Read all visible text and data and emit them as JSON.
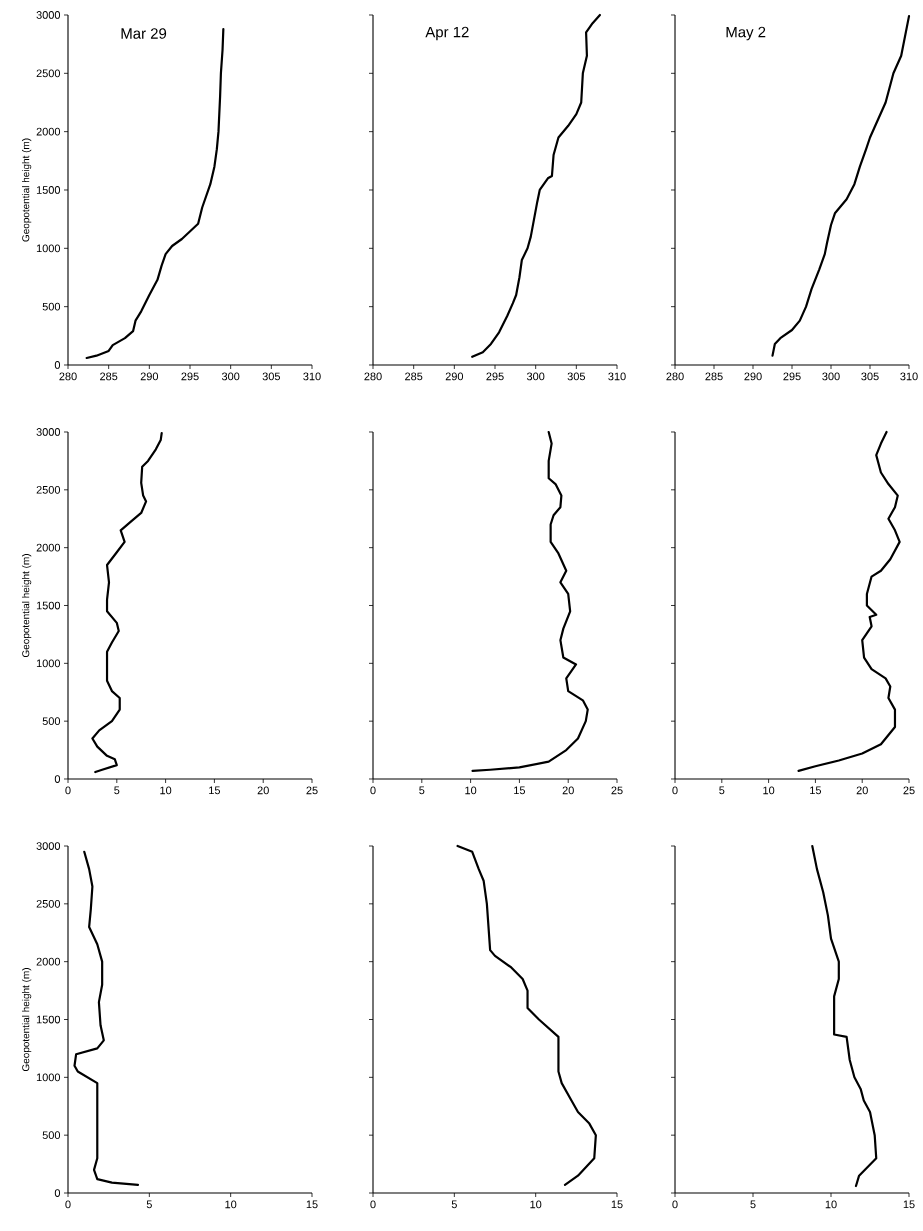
{
  "chart_data": [
    {
      "type": "line",
      "title": "Mar 29",
      "ylabel": "Geopotential height (m)",
      "xlim": [
        280,
        310
      ],
      "xticks": [
        280,
        285,
        290,
        295,
        300,
        305,
        310
      ],
      "ylim": [
        0,
        3000
      ],
      "yticks": [
        0,
        500,
        1000,
        1500,
        2000,
        2500,
        3000
      ],
      "series": [
        {
          "color": "#000000",
          "x": [
            282.3,
            283.5,
            285,
            285.5,
            287,
            288,
            288.3,
            289,
            290,
            291,
            291.5,
            292,
            292.8,
            294,
            296,
            296.5,
            297.5,
            298,
            298.3,
            298.5,
            298.7,
            298.8,
            299,
            299.1
          ],
          "values": [
            60,
            80,
            120,
            170,
            230,
            290,
            380,
            460,
            600,
            730,
            850,
            950,
            1020,
            1080,
            1210,
            1350,
            1550,
            1700,
            1850,
            2000,
            2300,
            2500,
            2700,
            2880
          ]
        }
      ]
    },
    {
      "type": "line",
      "title": "Apr 12",
      "xlim": [
        280,
        310
      ],
      "xticks": [
        280,
        285,
        290,
        295,
        300,
        305,
        310
      ],
      "ylim": [
        0,
        3000
      ],
      "yticks": [
        0,
        500,
        1000,
        1500,
        2000,
        2500,
        3000
      ],
      "tick_labels": "x",
      "series": [
        {
          "color": "#000000",
          "x": [
            292.2,
            293.5,
            294.5,
            295.5,
            296.5,
            297.2,
            297.6,
            298,
            298.3,
            299,
            299.4,
            299.8,
            300.2,
            300.5,
            301.5,
            302,
            302.2,
            302.8,
            304,
            305,
            305.6,
            305.8,
            306.3,
            306.2,
            307,
            307.9
          ],
          "values": [
            70,
            110,
            180,
            280,
            420,
            530,
            600,
            750,
            900,
            1000,
            1100,
            1250,
            1400,
            1500,
            1600,
            1620,
            1800,
            1950,
            2050,
            2150,
            2250,
            2500,
            2650,
            2850,
            2930,
            3000
          ]
        }
      ]
    },
    {
      "type": "line",
      "title": "May 2",
      "xlim": [
        280,
        310
      ],
      "xticks": [
        280,
        285,
        290,
        295,
        300,
        305,
        310
      ],
      "ylim": [
        0,
        3000
      ],
      "yticks": [
        0,
        500,
        1000,
        1500,
        2000,
        2500,
        3000
      ],
      "tick_labels": "x",
      "series": [
        {
          "color": "#000000",
          "x": [
            292.5,
            292.8,
            293.5,
            295,
            296,
            296.8,
            297.5,
            298.5,
            299.2,
            299.5,
            300,
            300.5,
            302,
            303,
            303.7,
            304.5,
            305,
            306,
            307,
            307.6,
            308,
            309,
            310
          ],
          "values": [
            80,
            180,
            230,
            300,
            380,
            500,
            650,
            820,
            950,
            1050,
            1200,
            1300,
            1420,
            1550,
            1700,
            1850,
            1950,
            2100,
            2250,
            2400,
            2500,
            2650,
            2990
          ]
        }
      ]
    },
    {
      "type": "line",
      "ylabel": "Geopotential height (m)",
      "xlim": [
        0,
        25
      ],
      "xticks": [
        0,
        5,
        10,
        15,
        20,
        25
      ],
      "ylim": [
        0,
        3000
      ],
      "yticks": [
        0,
        500,
        1000,
        1500,
        2000,
        2500,
        3000
      ],
      "series": [
        {
          "color": "#000000",
          "x": [
            2.8,
            3.5,
            5,
            4.8,
            4,
            3,
            2.5,
            3.2,
            4.5,
            5.3,
            5.3,
            4.5,
            4,
            4,
            4.5,
            5.2,
            5,
            4,
            4,
            4.2,
            4,
            5,
            5.8,
            5.4,
            6.5,
            7.5,
            8,
            7.7,
            7.5,
            7.6,
            8.2,
            9,
            9.5,
            9.6
          ],
          "values": [
            60,
            80,
            120,
            170,
            200,
            280,
            350,
            420,
            500,
            600,
            700,
            760,
            850,
            1100,
            1180,
            1280,
            1350,
            1450,
            1550,
            1700,
            1850,
            1960,
            2050,
            2150,
            2230,
            2300,
            2400,
            2450,
            2560,
            2700,
            2750,
            2850,
            2930,
            2990
          ]
        }
      ]
    },
    {
      "type": "line",
      "xlim": [
        0,
        25
      ],
      "xticks": [
        0,
        5,
        10,
        15,
        20,
        25
      ],
      "ylim": [
        0,
        3000
      ],
      "yticks": [
        0,
        500,
        1000,
        1500,
        2000,
        2500,
        3000
      ],
      "tick_labels": "x",
      "series": [
        {
          "color": "#000000",
          "x": [
            10.2,
            12,
            15,
            18,
            19.8,
            21,
            21.8,
            22,
            21.5,
            20,
            19.8,
            20.8,
            19.5,
            19.2,
            19.5,
            20.2,
            20,
            19.2,
            19.8,
            19,
            18.2,
            18.2,
            18.5,
            19.2,
            19.3,
            18.7,
            18,
            18,
            18.3,
            18
          ],
          "values": [
            70,
            80,
            100,
            150,
            250,
            350,
            500,
            600,
            680,
            760,
            870,
            990,
            1050,
            1200,
            1300,
            1450,
            1600,
            1700,
            1800,
            1950,
            2050,
            2200,
            2280,
            2350,
            2450,
            2550,
            2600,
            2750,
            2900,
            3000
          ]
        }
      ]
    },
    {
      "type": "line",
      "xlim": [
        0,
        25
      ],
      "xticks": [
        0,
        5,
        10,
        15,
        20,
        25
      ],
      "ylim": [
        0,
        3000
      ],
      "yticks": [
        0,
        500,
        1000,
        1500,
        2000,
        2500,
        3000
      ],
      "tick_labels": "x",
      "series": [
        {
          "color": "#000000",
          "x": [
            13.2,
            15,
            17.5,
            20,
            22,
            23.5,
            23.5,
            22.8,
            23,
            22.5,
            21,
            20.2,
            20,
            21,
            20.8,
            21.5,
            20.5,
            20.5,
            21,
            22,
            23,
            24,
            23.5,
            22.8,
            23.5,
            23.8,
            22.8,
            22,
            21.5,
            22,
            22.6
          ],
          "values": [
            70,
            110,
            160,
            220,
            300,
            450,
            600,
            700,
            800,
            870,
            950,
            1050,
            1200,
            1320,
            1400,
            1420,
            1500,
            1600,
            1750,
            1800,
            1900,
            2050,
            2150,
            2250,
            2350,
            2450,
            2550,
            2650,
            2800,
            2900,
            3000
          ]
        }
      ]
    },
    {
      "type": "line",
      "ylabel": "Geopotential height (m)",
      "xlim": [
        0,
        15
      ],
      "xticks": [
        0,
        5,
        10,
        15
      ],
      "ylim": [
        0,
        3000
      ],
      "yticks": [
        0,
        500,
        1000,
        1500,
        2000,
        2500,
        3000
      ],
      "series": [
        {
          "color": "#000000",
          "x": [
            4.3,
            2.7,
            1.8,
            1.6,
            1.8,
            1.8,
            0.6,
            0.4,
            0.5,
            1.8,
            2.2,
            2,
            1.9,
            2.1,
            2.1,
            1.8,
            1.3,
            1.4,
            1.5,
            1.3,
            1
          ],
          "values": [
            70,
            90,
            120,
            200,
            300,
            950,
            1050,
            1100,
            1200,
            1250,
            1320,
            1450,
            1650,
            1800,
            2000,
            2150,
            2300,
            2450,
            2650,
            2800,
            2950
          ]
        }
      ]
    },
    {
      "type": "line",
      "xlim": [
        0,
        15
      ],
      "xticks": [
        0,
        5,
        10,
        15
      ],
      "ylim": [
        0,
        3000
      ],
      "yticks": [
        0,
        500,
        1000,
        1500,
        2000,
        2500,
        3000
      ],
      "tick_labels": "x",
      "series": [
        {
          "color": "#000000",
          "x": [
            11.8,
            12.6,
            13.6,
            13.7,
            13.3,
            12.6,
            12.2,
            11.6,
            11.4,
            11.4,
            10.2,
            9.5,
            9.5,
            9.2,
            8.5,
            7.5,
            7.2,
            7.1,
            7,
            6.8,
            6.5,
            6.1,
            5.2
          ],
          "values": [
            70,
            150,
            300,
            500,
            600,
            700,
            800,
            950,
            1050,
            1350,
            1500,
            1600,
            1750,
            1850,
            1950,
            2050,
            2100,
            2300,
            2500,
            2700,
            2800,
            2950,
            3000
          ]
        }
      ]
    },
    {
      "type": "line",
      "xlim": [
        0,
        15
      ],
      "xticks": [
        0,
        5,
        10,
        15
      ],
      "ylim": [
        0,
        3000
      ],
      "yticks": [
        0,
        500,
        1000,
        1500,
        2000,
        2500,
        3000
      ],
      "tick_labels": "x",
      "series": [
        {
          "color": "#000000",
          "x": [
            11.6,
            11.8,
            12.9,
            12.8,
            12.5,
            12.1,
            11.9,
            11.5,
            11.2,
            11,
            10.2,
            10.2,
            10.5,
            10.5,
            10,
            9.8,
            9.5,
            9.1,
            8.8
          ],
          "values": [
            60,
            150,
            300,
            500,
            700,
            800,
            900,
            1000,
            1150,
            1350,
            1370,
            1700,
            1850,
            2000,
            2200,
            2400,
            2600,
            2800,
            3000
          ]
        }
      ]
    }
  ]
}
